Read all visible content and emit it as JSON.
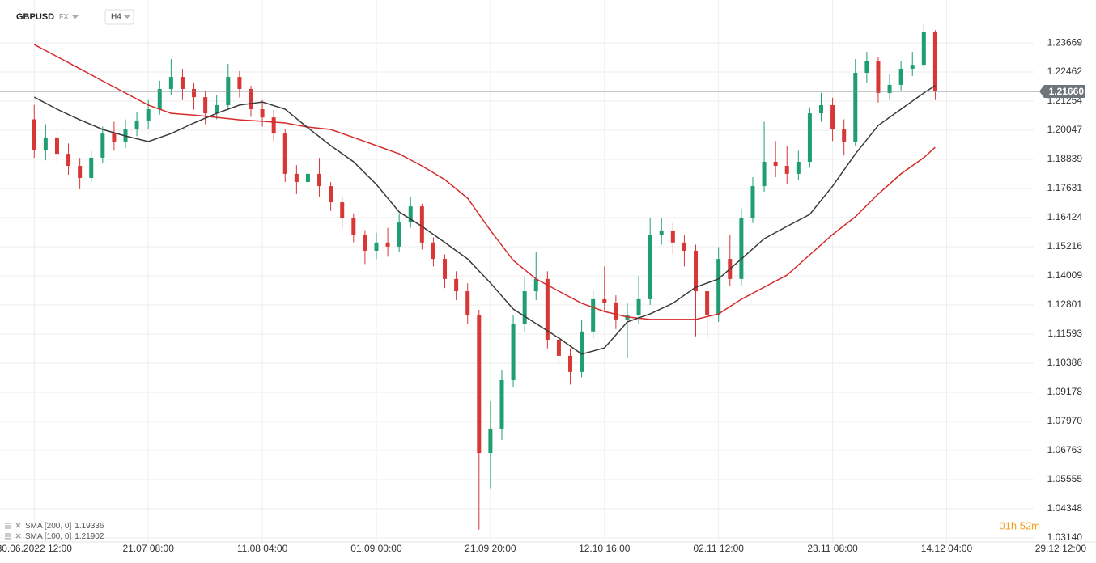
{
  "header": {
    "symbol": "GBPUSD",
    "market": "FX",
    "interval": "H4"
  },
  "chart_data": {
    "type": "candlestick",
    "xlim": [
      -3,
      87.7
    ],
    "xticks": [
      {
        "value": 0,
        "label": "30.06.2022  12:00"
      },
      {
        "value": 10,
        "label": "21.07  08:00"
      },
      {
        "value": 20,
        "label": "11.08  04:00"
      },
      {
        "value": 30,
        "label": "01.09  00:00"
      },
      {
        "value": 40,
        "label": "21.09  20:00"
      },
      {
        "value": 50,
        "label": "12.10  16:00"
      },
      {
        "value": 60,
        "label": "02.11  12:00"
      },
      {
        "value": 70,
        "label": "23.11  08:00"
      },
      {
        "value": 80,
        "label": "14.12  04:00"
      },
      {
        "value": 90,
        "label": "29.12  12:00"
      }
    ],
    "ylim": [
      1.0297,
      1.2545
    ],
    "yticks": [
      {
        "value": 1.0314,
        "label": "1.03140"
      },
      {
        "value": 1.04348,
        "label": "1.04348"
      },
      {
        "value": 1.05555,
        "label": "1.05555"
      },
      {
        "value": 1.06763,
        "label": "1.06763"
      },
      {
        "value": 1.0797,
        "label": "1.07970"
      },
      {
        "value": 1.09178,
        "label": "1.09178"
      },
      {
        "value": 1.10386,
        "label": "1.10386"
      },
      {
        "value": 1.11593,
        "label": "1.11593"
      },
      {
        "value": 1.12801,
        "label": "1.12801"
      },
      {
        "value": 1.14009,
        "label": "1.14009"
      },
      {
        "value": 1.15216,
        "label": "1.15216"
      },
      {
        "value": 1.16424,
        "label": "1.16424"
      },
      {
        "value": 1.17631,
        "label": "1.17631"
      },
      {
        "value": 1.18839,
        "label": "1.18839"
      },
      {
        "value": 1.20047,
        "label": "1.20047"
      },
      {
        "value": 1.21254,
        "label": "1.21254"
      },
      {
        "value": 1.22462,
        "label": "1.22462"
      },
      {
        "value": 1.23669,
        "label": "1.23669"
      }
    ],
    "grid": true,
    "up_color": "#1e9e72",
    "down_color": "#d93636",
    "open": [
      1.205,
      1.1924,
      1.1975,
      1.1907,
      1.1857,
      1.1807,
      1.1891,
      1.1991,
      1.1958,
      1.2008,
      1.2042,
      1.2092,
      1.2176,
      1.2226,
      1.2176,
      1.2142,
      1.2075,
      1.2109,
      1.2226,
      1.2176,
      1.2092,
      1.2058,
      1.1991,
      1.1824,
      1.179,
      1.1824,
      1.1773,
      1.1706,
      1.1639,
      1.1572,
      1.1505,
      1.1539,
      1.1522,
      1.1622,
      1.1689,
      1.1539,
      1.1471,
      1.1388,
      1.1337,
      1.1237,
      1.0666,
      1.0767,
      1.0968,
      1.1203,
      1.1337,
      1.1388,
      1.1136,
      1.1069,
      1.1002,
      1.117,
      1.1304,
      1.1287,
      1.122,
      1.1237,
      1.1304,
      1.1572,
      1.1589,
      1.1539,
      1.1505,
      1.1337,
      1.1237,
      1.1471,
      1.1388,
      1.1639,
      1.1773,
      1.1874,
      1.1857,
      1.1824,
      1.1874,
      1.2075,
      1.2109,
      1.2008,
      1.1958,
      1.2243,
      1.2293,
      1.2159,
      1.2193,
      1.226,
      1.2276,
      1.2411
    ],
    "high": [
      1.211,
      1.203,
      1.2,
      1.195,
      1.189,
      1.192,
      1.202,
      1.204,
      1.205,
      1.208,
      1.213,
      1.221,
      1.23,
      1.226,
      1.22,
      1.217,
      1.215,
      1.228,
      1.225,
      1.219,
      1.213,
      1.209,
      1.201,
      1.186,
      1.188,
      1.189,
      1.179,
      1.173,
      1.166,
      1.159,
      1.158,
      1.16,
      1.166,
      1.173,
      1.17,
      1.156,
      1.149,
      1.142,
      1.137,
      1.126,
      1.088,
      1.101,
      1.124,
      1.14,
      1.15,
      1.142,
      1.117,
      1.11,
      1.122,
      1.134,
      1.144,
      1.132,
      1.129,
      1.14,
      1.164,
      1.164,
      1.162,
      1.157,
      1.153,
      1.138,
      1.152,
      1.157,
      1.168,
      1.181,
      1.204,
      1.196,
      1.194,
      1.192,
      1.21,
      1.216,
      1.214,
      1.205,
      1.23,
      1.233,
      1.231,
      1.224,
      1.229,
      1.233,
      1.2446,
      1.242
    ],
    "low": [
      1.189,
      1.188,
      1.187,
      1.182,
      1.176,
      1.179,
      1.187,
      1.192,
      1.193,
      1.198,
      1.201,
      1.207,
      1.215,
      1.213,
      1.209,
      1.203,
      1.205,
      1.209,
      1.214,
      1.206,
      1.202,
      1.196,
      1.179,
      1.174,
      1.176,
      1.173,
      1.167,
      1.16,
      1.154,
      1.145,
      1.147,
      1.148,
      1.15,
      1.16,
      1.151,
      1.144,
      1.135,
      1.13,
      1.12,
      1.0348,
      1.052,
      1.072,
      1.094,
      1.117,
      1.13,
      1.11,
      1.103,
      1.095,
      1.098,
      1.114,
      1.125,
      1.118,
      1.106,
      1.12,
      1.128,
      1.153,
      1.149,
      1.144,
      1.115,
      1.114,
      1.121,
      1.136,
      1.136,
      1.162,
      1.175,
      1.181,
      1.178,
      1.18,
      1.185,
      1.204,
      1.196,
      1.19,
      1.194,
      1.22,
      1.212,
      1.213,
      1.217,
      1.223,
      1.226,
      1.213
    ],
    "close": [
      1.1924,
      1.1975,
      1.1907,
      1.1857,
      1.1807,
      1.1891,
      1.1991,
      1.1958,
      1.2008,
      1.2042,
      1.2092,
      1.2176,
      1.2226,
      1.2176,
      1.2142,
      1.2075,
      1.2109,
      1.2226,
      1.2176,
      1.2092,
      1.2058,
      1.1991,
      1.1824,
      1.179,
      1.1824,
      1.1773,
      1.1706,
      1.1639,
      1.1572,
      1.1505,
      1.1539,
      1.1522,
      1.1622,
      1.1689,
      1.1539,
      1.1471,
      1.1388,
      1.1337,
      1.1237,
      1.0666,
      1.0767,
      1.0968,
      1.1203,
      1.1337,
      1.1388,
      1.1136,
      1.1069,
      1.1002,
      1.117,
      1.1304,
      1.1287,
      1.122,
      1.1237,
      1.1304,
      1.1572,
      1.1589,
      1.1539,
      1.1505,
      1.1337,
      1.1237,
      1.1471,
      1.1388,
      1.1639,
      1.1773,
      1.1874,
      1.1857,
      1.1824,
      1.1874,
      1.2075,
      1.2109,
      1.2008,
      1.1958,
      1.2243,
      1.2293,
      1.2159,
      1.2193,
      1.226,
      1.2276,
      1.2411,
      1.2166
    ],
    "sma_x": [
      0,
      2,
      4,
      6,
      8,
      10,
      12,
      14,
      16,
      18,
      20,
      22,
      24,
      26,
      28,
      30,
      32,
      34,
      36,
      38,
      40,
      42,
      44,
      46,
      48,
      50,
      52,
      54,
      56,
      58,
      60,
      62,
      64,
      66,
      68,
      70,
      72,
      74,
      76,
      78,
      79
    ],
    "series": [
      {
        "name": "SMA [200, 0]",
        "legend_value": "1.19336",
        "color": "#d62b2b",
        "values": [
          1.236,
          1.231,
          1.226,
          1.2209,
          1.2159,
          1.2109,
          1.2075,
          1.2068,
          1.2058,
          1.2048,
          1.2042,
          1.2035,
          1.2018,
          1.2008,
          1.1975,
          1.1941,
          1.1907,
          1.1857,
          1.18,
          1.1723,
          1.1589,
          1.1465,
          1.1388,
          1.1337,
          1.1287,
          1.1253,
          1.123,
          1.122,
          1.122,
          1.122,
          1.1243,
          1.1304,
          1.1354,
          1.1404,
          1.1488,
          1.1572,
          1.1646,
          1.174,
          1.1824,
          1.1891,
          1.1934
        ]
      },
      {
        "name": "SMA [100, 0]",
        "legend_value": "1.21902",
        "color": "#3a3a3a",
        "values": [
          1.2142,
          1.2092,
          1.2048,
          1.2008,
          1.1981,
          1.1958,
          1.1991,
          1.2035,
          1.2075,
          1.2109,
          1.2122,
          1.2092,
          1.2015,
          1.1941,
          1.1874,
          1.178,
          1.1666,
          1.1606,
          1.1539,
          1.1471,
          1.1371,
          1.1263,
          1.1203,
          1.1143,
          1.1076,
          1.1102,
          1.121,
          1.1243,
          1.1287,
          1.1354,
          1.1388,
          1.1471,
          1.1555,
          1.1606,
          1.1656,
          1.1773,
          1.1907,
          1.2025,
          1.2092,
          1.2159,
          1.219
        ]
      }
    ],
    "last_price": {
      "value": 1.2166,
      "label": "1.21660"
    },
    "countdown": "01h 52m"
  }
}
